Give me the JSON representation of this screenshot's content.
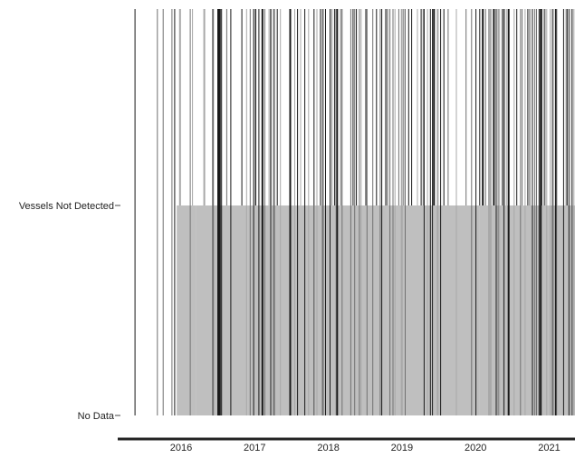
{
  "chart_data": {
    "type": "barcode",
    "title": "",
    "xlabel": "",
    "ylabel": "",
    "x_ticks": [
      "2016",
      "2017",
      "2018",
      "2019",
      "2020",
      "2021"
    ],
    "y_categories": [
      "No Data",
      "Vessels Not Detected"
    ],
    "x_range": [
      2015.7,
      2021.85
    ],
    "grid": false,
    "legend": "none",
    "colors": {
      "dark": "#1a1a1a",
      "mid": "#707070",
      "light": "#a8a8a8",
      "band": "#8a8a8a",
      "axis": "#222222"
    },
    "segments": [
      {
        "start": 2015.7,
        "end": 2016.44,
        "band": false,
        "density": 0.25
      },
      {
        "start": 2016.44,
        "end": 2016.58,
        "band": true,
        "density": 0.12
      },
      {
        "start": 2016.58,
        "end": 2016.7,
        "band": true,
        "density": 0.45
      },
      {
        "start": 2016.7,
        "end": 2017.4,
        "band": true,
        "density": 0.6
      },
      {
        "start": 2017.4,
        "end": 2018.3,
        "band": true,
        "density": 0.62
      },
      {
        "start": 2018.3,
        "end": 2019.3,
        "band": true,
        "density": 0.72
      },
      {
        "start": 2019.3,
        "end": 2020.0,
        "band": true,
        "density": 0.78
      },
      {
        "start": 2020.0,
        "end": 2020.48,
        "band": true,
        "density": 0.6
      },
      {
        "start": 2020.48,
        "end": 2020.55,
        "band": true,
        "density": 0.1
      },
      {
        "start": 2020.55,
        "end": 2021.85,
        "band": true,
        "density": 0.9
      }
    ]
  }
}
